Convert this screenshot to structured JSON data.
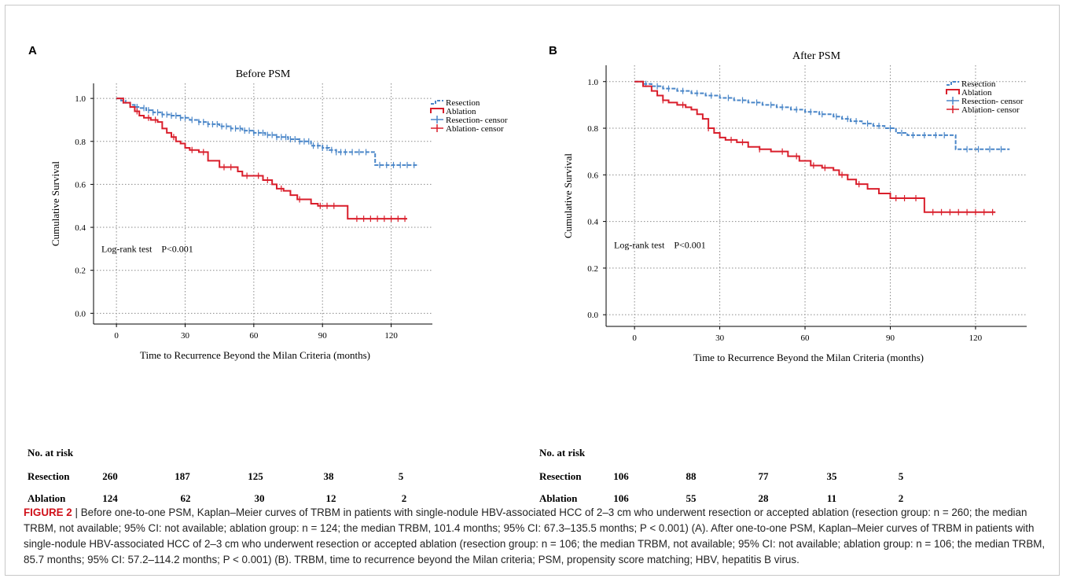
{
  "panels": [
    {
      "letter": "A",
      "chart_data": {
        "type": "line",
        "title": "Before PSM",
        "xlabel": "Time to Recurrence Beyond the Milan Criteria (months)",
        "ylabel": "Cumulative Survival",
        "xlim": [
          -10,
          138
        ],
        "ylim": [
          -0.05,
          1.07
        ],
        "xticks": [
          0,
          30,
          60,
          90,
          120
        ],
        "yticks": [
          0.0,
          0.2,
          0.4,
          0.6,
          0.8,
          1.0
        ],
        "ytick_labels": [
          "0.0",
          "0.2",
          "0.4",
          "0.6",
          "0.8",
          "1.0"
        ],
        "grid": true,
        "legend_position": "top-right",
        "legend": [
          "Resection",
          "Ablation",
          "Resection- censor",
          "Ablation- censor"
        ],
        "annotation": "Log-rank test    P<0.001",
        "series": [
          {
            "name": "Resection",
            "color": "#4a86c8",
            "x": [
              0,
              2,
              4,
              6,
              8,
              10,
              13,
              16,
              20,
              24,
              28,
              32,
              36,
              40,
              45,
              50,
              55,
              60,
              65,
              70,
              75,
              80,
              85,
              90,
              93,
              96,
              100,
              105,
              110,
              113,
              116,
              120,
              125,
              130,
              132
            ],
            "y": [
              1.0,
              0.99,
              0.98,
              0.97,
              0.96,
              0.955,
              0.945,
              0.935,
              0.925,
              0.92,
              0.91,
              0.9,
              0.89,
              0.88,
              0.87,
              0.86,
              0.85,
              0.84,
              0.83,
              0.82,
              0.81,
              0.8,
              0.78,
              0.77,
              0.76,
              0.75,
              0.75,
              0.75,
              0.75,
              0.69,
              0.69,
              0.69,
              0.69,
              0.69,
              0.69
            ],
            "censor_x": [
              3,
              6,
              9,
              12,
              14,
              16,
              18,
              20,
              22,
              24,
              26,
              28,
              30,
              33,
              36,
              38,
              40,
              42,
              44,
              46,
              48,
              50,
              52,
              54,
              56,
              58,
              60,
              62,
              64,
              66,
              68,
              70,
              72,
              74,
              76,
              78,
              80,
              82,
              84,
              86,
              88,
              90,
              92,
              94,
              96,
              98,
              100,
              103,
              106,
              109,
              115,
              118,
              121,
              124,
              127,
              130
            ]
          },
          {
            "name": "Ablation",
            "color": "#d91e2b",
            "x": [
              0,
              3,
              6,
              8,
              10,
              12,
              15,
              18,
              20,
              22,
              24,
              26,
              28,
              30,
              32,
              36,
              40,
              42,
              45,
              50,
              53,
              55,
              60,
              64,
              68,
              70,
              73,
              76,
              79,
              82,
              85,
              88,
              93,
              98,
              101,
              104,
              110,
              120,
              127
            ],
            "y": [
              1.0,
              0.98,
              0.96,
              0.94,
              0.92,
              0.91,
              0.9,
              0.89,
              0.86,
              0.84,
              0.82,
              0.8,
              0.79,
              0.77,
              0.76,
              0.75,
              0.71,
              0.71,
              0.68,
              0.68,
              0.66,
              0.64,
              0.64,
              0.62,
              0.6,
              0.58,
              0.57,
              0.55,
              0.53,
              0.53,
              0.51,
              0.5,
              0.5,
              0.5,
              0.44,
              0.44,
              0.44,
              0.44,
              0.44
            ],
            "censor_x": [
              9,
              14,
              17,
              25,
              33,
              38,
              47,
              50,
              57,
              62,
              66,
              72,
              80,
              89,
              92,
              95,
              105,
              108,
              111,
              114,
              117,
              120,
              123,
              126
            ]
          }
        ]
      }
    },
    {
      "letter": "B",
      "chart_data": {
        "type": "line",
        "title": "After PSM",
        "xlabel": "Time to Recurrence Beyond the Milan Criteria (months)",
        "ylabel": "Cumulative Survival",
        "xlim": [
          -10,
          138
        ],
        "ylim": [
          -0.05,
          1.07
        ],
        "xticks": [
          0,
          30,
          60,
          90,
          120
        ],
        "yticks": [
          0.0,
          0.2,
          0.4,
          0.6,
          0.8,
          1.0
        ],
        "ytick_labels": [
          "0.0",
          "0.2",
          "0.4",
          "0.6",
          "0.8",
          "1.0"
        ],
        "grid": true,
        "legend_position": "top-right",
        "legend": [
          "Resection",
          "Ablation",
          "Resection- censor",
          "Ablation- censor"
        ],
        "annotation": "Log-rank test    P<0.001",
        "series": [
          {
            "name": "Resection",
            "color": "#4a86c8",
            "x": [
              0,
              3,
              6,
              10,
              15,
              20,
              25,
              30,
              35,
              40,
              45,
              50,
              55,
              60,
              65,
              70,
              73,
              76,
              80,
              84,
              88,
              92,
              96,
              100,
              105,
              110,
              113,
              116,
              120,
              125,
              132
            ],
            "y": [
              1.0,
              0.99,
              0.98,
              0.97,
              0.96,
              0.95,
              0.94,
              0.93,
              0.92,
              0.91,
              0.9,
              0.89,
              0.88,
              0.87,
              0.86,
              0.85,
              0.84,
              0.83,
              0.82,
              0.81,
              0.8,
              0.78,
              0.77,
              0.77,
              0.77,
              0.77,
              0.71,
              0.71,
              0.71,
              0.71,
              0.71
            ],
            "censor_x": [
              4,
              8,
              12,
              17,
              22,
              27,
              33,
              38,
              43,
              48,
              52,
              57,
              62,
              66,
              71,
              75,
              78,
              82,
              86,
              90,
              94,
              98,
              102,
              106,
              109,
              117,
              121,
              125,
              129
            ]
          },
          {
            "name": "Ablation",
            "color": "#d91e2b",
            "x": [
              0,
              3,
              6,
              8,
              10,
              12,
              15,
              18,
              20,
              22,
              24,
              26,
              28,
              30,
              32,
              36,
              40,
              44,
              48,
              54,
              58,
              62,
              66,
              70,
              72,
              75,
              78,
              82,
              86,
              90,
              96,
              100,
              102,
              110,
              120,
              127
            ],
            "y": [
              1.0,
              0.98,
              0.96,
              0.94,
              0.92,
              0.91,
              0.9,
              0.89,
              0.88,
              0.86,
              0.84,
              0.8,
              0.78,
              0.76,
              0.75,
              0.74,
              0.72,
              0.71,
              0.7,
              0.68,
              0.66,
              0.64,
              0.63,
              0.62,
              0.6,
              0.58,
              0.56,
              0.54,
              0.52,
              0.5,
              0.5,
              0.5,
              0.44,
              0.44,
              0.44,
              0.44
            ],
            "censor_x": [
              10,
              17,
              26,
              34,
              38,
              44,
              52,
              57,
              63,
              67,
              73,
              79,
              92,
              95,
              99,
              105,
              108,
              111,
              114,
              117,
              120,
              123,
              126
            ]
          }
        ]
      }
    }
  ],
  "risk_tables": [
    {
      "header": "No. at risk",
      "rows": [
        {
          "label": "Resection",
          "values": [
            "260",
            "187",
            "125",
            "38",
            "5"
          ]
        },
        {
          "label": "Ablation",
          "values": [
            "124",
            "62",
            "30",
            "12",
            "2"
          ]
        }
      ]
    },
    {
      "header": "No. at risk",
      "rows": [
        {
          "label": "Resection",
          "values": [
            "106",
            "88",
            "77",
            "35",
            "5"
          ]
        },
        {
          "label": "Ablation",
          "values": [
            "106",
            "55",
            "28",
            "11",
            "2"
          ]
        }
      ]
    }
  ],
  "caption": {
    "figure_label": "FIGURE 2",
    "separator": " | ",
    "text": "Before one-to-one PSM, Kaplan–Meier curves of TRBM in patients with single-nodule HBV-associated HCC of 2–3 cm who underwent resection or accepted ablation (resection group: n = 260; the median TRBM, not available; 95% CI: not available; ablation group: n = 124; the median TRBM, 101.4 months; 95% CI: 67.3–135.5 months; P < 0.001) (A). After one-to-one PSM, Kaplan–Meier curves of TRBM in patients with single-nodule HBV-associated HCC of 2–3 cm who underwent resection or accepted ablation (resection group: n = 106; the median TRBM, not available; 95% CI: not available; ablation group: n = 106; the median TRBM, 85.7 months; 95% CI: 57.2–114.2 months; P < 0.001) (B). TRBM, time to recurrence beyond the Milan criteria; PSM, propensity score matching; HBV, hepatitis B virus."
  }
}
